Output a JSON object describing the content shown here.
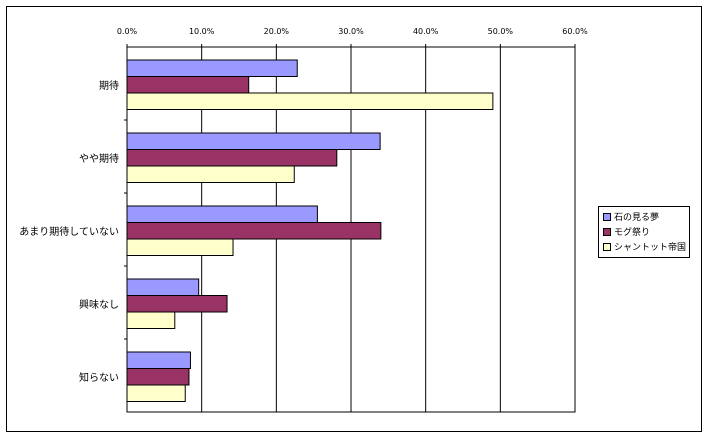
{
  "chart_data": {
    "type": "bar",
    "orientation": "horizontal",
    "categories": [
      "期待",
      "やや期待",
      "あまり期待していない",
      "興味なし",
      "知らない"
    ],
    "series": [
      {
        "name": "石の見る夢",
        "color": "#9999ff",
        "values": [
          22.8,
          33.9,
          25.5,
          9.6,
          8.5
        ]
      },
      {
        "name": "モグ祭り",
        "color": "#993366",
        "values": [
          16.3,
          28.1,
          34.0,
          13.4,
          8.3
        ]
      },
      {
        "name": "シャントット帝国",
        "color": "#ffffcc",
        "values": [
          49.0,
          22.4,
          14.2,
          6.4,
          7.8
        ]
      }
    ],
    "xlim": [
      0,
      60
    ],
    "xticks": [
      "0.0%",
      "10.0%",
      "20.0%",
      "30.0%",
      "40.0%",
      "50.0%",
      "60.0%"
    ],
    "grid": true,
    "legend_position": "right",
    "title": "",
    "xlabel": "",
    "ylabel": ""
  }
}
